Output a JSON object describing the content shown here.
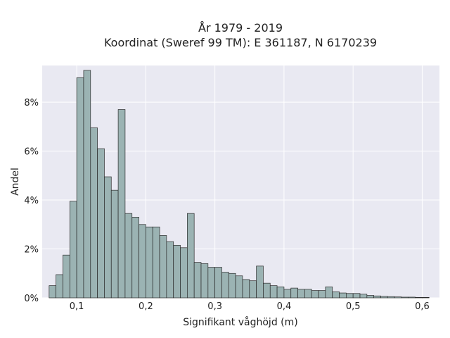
{
  "chart_data": {
    "type": "bar",
    "title_line1": "År 1979 - 2019",
    "title_line2": "Koordinat (Sweref 99 TM): E 361187, N 6170239",
    "xlabel": "Signifikant våghöjd (m)",
    "ylabel": "Andel",
    "xlim": [
      0.05,
      0.625
    ],
    "ylim": [
      0,
      9.5
    ],
    "bin_width": 0.01,
    "x_ticks": [
      {
        "value": 0.1,
        "label": "0,1"
      },
      {
        "value": 0.2,
        "label": "0,2"
      },
      {
        "value": 0.3,
        "label": "0,3"
      },
      {
        "value": 0.4,
        "label": "0,4"
      },
      {
        "value": 0.5,
        "label": "0,5"
      },
      {
        "value": 0.6,
        "label": "0,6"
      }
    ],
    "y_ticks": [
      {
        "value": 0,
        "label": "0%"
      },
      {
        "value": 2,
        "label": "2%"
      },
      {
        "value": 4,
        "label": "4%"
      },
      {
        "value": 6,
        "label": "6%"
      },
      {
        "value": 8,
        "label": "8%"
      }
    ],
    "grid": true,
    "bar_color": "#9bb3b3",
    "edge_color": "#2b2b2b",
    "background_color": "#e9e9f2",
    "bins_start": [
      0.06,
      0.07,
      0.08,
      0.09,
      0.1,
      0.11,
      0.12,
      0.13,
      0.14,
      0.15,
      0.16,
      0.17,
      0.18,
      0.19,
      0.2,
      0.21,
      0.22,
      0.23,
      0.24,
      0.25,
      0.26,
      0.27,
      0.28,
      0.29,
      0.3,
      0.31,
      0.32,
      0.33,
      0.34,
      0.35,
      0.36,
      0.37,
      0.38,
      0.39,
      0.4,
      0.41,
      0.42,
      0.43,
      0.44,
      0.45,
      0.46,
      0.47,
      0.48,
      0.49,
      0.5,
      0.51,
      0.52,
      0.53,
      0.54,
      0.55,
      0.56,
      0.57,
      0.58,
      0.59,
      0.6
    ],
    "values": [
      0.5,
      0.95,
      1.75,
      3.95,
      9.0,
      9.3,
      6.95,
      6.1,
      4.95,
      4.4,
      7.7,
      3.45,
      3.3,
      3.0,
      2.9,
      2.9,
      2.55,
      2.3,
      2.15,
      2.05,
      3.45,
      1.45,
      1.4,
      1.25,
      1.25,
      1.05,
      1.0,
      0.9,
      0.75,
      0.7,
      1.3,
      0.6,
      0.5,
      0.45,
      0.35,
      0.4,
      0.35,
      0.35,
      0.3,
      0.3,
      0.45,
      0.25,
      0.2,
      0.18,
      0.18,
      0.15,
      0.1,
      0.08,
      0.06,
      0.05,
      0.04,
      0.03,
      0.03,
      0.02,
      0.02
    ]
  }
}
